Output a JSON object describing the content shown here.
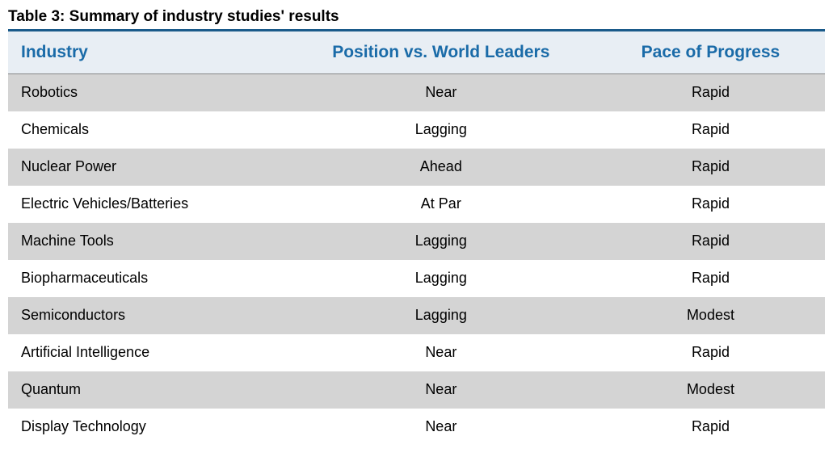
{
  "table": {
    "title": "Table 3: Summary of industry studies' results",
    "title_color": "#000000",
    "title_fontsize": 19,
    "title_underline_color": "#1a5a8a",
    "header_bg_color": "#e8eef4",
    "header_text_color": "#1a6ba8",
    "header_fontsize": 21,
    "header_border_color": "#888888",
    "row_odd_bg": "#d4d4d4",
    "row_even_bg": "#ffffff",
    "cell_text_color": "#000000",
    "cell_fontsize": 18,
    "column_widths": [
      "34%",
      "38%",
      "28%"
    ],
    "column_alignments": [
      "left",
      "center",
      "center"
    ],
    "columns": [
      "Industry",
      "Position vs. World Leaders",
      "Pace of Progress"
    ],
    "rows": [
      [
        "Robotics",
        "Near",
        "Rapid"
      ],
      [
        "Chemicals",
        "Lagging",
        "Rapid"
      ],
      [
        "Nuclear Power",
        "Ahead",
        "Rapid"
      ],
      [
        "Electric Vehicles/Batteries",
        "At Par",
        "Rapid"
      ],
      [
        "Machine Tools",
        "Lagging",
        "Rapid"
      ],
      [
        "Biopharmaceuticals",
        "Lagging",
        "Rapid"
      ],
      [
        "Semiconductors",
        "Lagging",
        "Modest"
      ],
      [
        "Artificial Intelligence",
        "Near",
        "Rapid"
      ],
      [
        "Quantum",
        "Near",
        "Modest"
      ],
      [
        "Display Technology",
        "Near",
        "Rapid"
      ]
    ]
  }
}
